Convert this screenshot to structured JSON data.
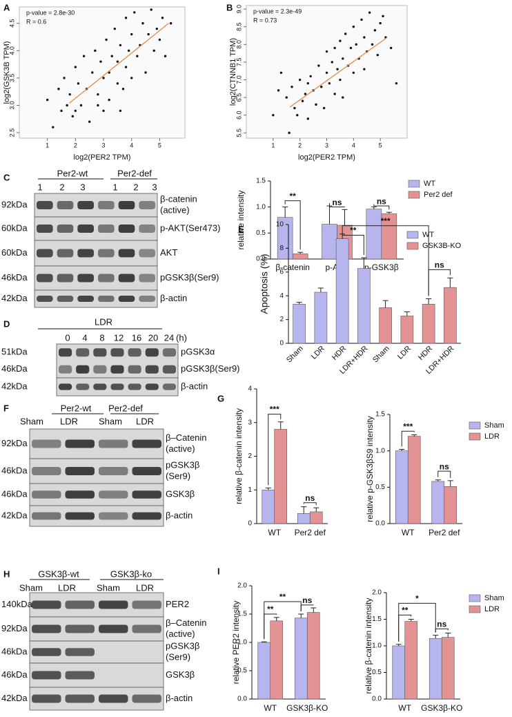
{
  "chart_data": [
    {
      "type": "scatter",
      "panel": "A",
      "xlabel": "log2(PER2 TPM)",
      "ylabel": "log2(GSK3B TPM)",
      "annotations": [
        "p-value = 2.8e-30",
        "R = 0.6"
      ],
      "xlim": [
        0,
        5.9
      ],
      "xticks": [
        1,
        2,
        3,
        4,
        5
      ],
      "ylim": [
        2.4,
        4.8
      ],
      "yticks": [
        2.5,
        {
          "value": 3,
          "label": "3.0"
        },
        3.5,
        {
          "value": 4,
          "label": "4.0"
        },
        4.5
      ],
      "x": [
        1.0,
        1.2,
        1.4,
        1.5,
        1.6,
        1.7,
        1.8,
        1.9,
        2.0,
        2.1,
        2.2,
        2.3,
        2.4,
        2.5,
        2.6,
        2.7,
        2.8,
        2.9,
        3.0,
        3.0,
        3.1,
        3.2,
        3.2,
        3.3,
        3.4,
        3.5,
        3.5,
        3.6,
        3.7,
        3.8,
        3.8,
        3.9,
        4.0,
        4.0,
        4.1,
        4.2,
        4.3,
        4.4,
        4.5,
        4.6,
        4.7,
        4.8,
        4.9,
        5.0,
        5.1,
        5.2,
        5.4,
        2.0,
        2.8,
        3.6
      ],
      "y": [
        3.1,
        2.6,
        3.3,
        2.9,
        3.5,
        3.0,
        3.2,
        2.8,
        3.7,
        3.4,
        3.0,
        3.9,
        3.3,
        2.7,
        3.6,
        4.0,
        3.2,
        3.8,
        3.5,
        2.9,
        4.2,
        3.6,
        3.1,
        3.9,
        4.4,
        3.4,
        3.8,
        4.1,
        3.3,
        4.6,
        3.7,
        4.0,
        4.3,
        3.5,
        4.7,
        3.9,
        4.1,
        4.5,
        3.6,
        4.3,
        4.75,
        4.0,
        4.4,
        4.2,
        4.6,
        3.9,
        4.5,
        2.9,
        3.0,
        2.9
      ],
      "color": "#111111",
      "trend_line": {
        "x": [
          1.78,
          5.32
        ],
        "y": [
          3.04,
          4.5
        ],
        "color": "#e08a4a"
      }
    },
    {
      "type": "scatter",
      "panel": "B",
      "xlabel": "log2(PER2 TPM)",
      "ylabel": "log2(CTNNB1 TPM)",
      "annotations": [
        "p-value = 2.3e-49",
        "R = 0.73"
      ],
      "xlim": [
        0,
        6
      ],
      "xticks": [
        1,
        2,
        3,
        4,
        5
      ],
      "ylim": [
        5.35,
        9.1
      ],
      "yticks": [
        5.5,
        {
          "value": 6,
          "label": "6.0"
        },
        6.5,
        {
          "value": 7,
          "label": "7.0"
        },
        7.5,
        {
          "value": 8,
          "label": "8.0"
        },
        8.5,
        {
          "value": 9,
          "label": "9.0"
        }
      ],
      "x": [
        1.0,
        1.3,
        1.5,
        1.6,
        1.7,
        1.8,
        1.9,
        2.0,
        2.1,
        2.2,
        2.3,
        2.4,
        2.5,
        2.6,
        2.7,
        2.8,
        2.9,
        3.0,
        3.0,
        3.1,
        3.2,
        3.3,
        3.3,
        3.4,
        3.5,
        3.5,
        3.6,
        3.7,
        3.8,
        3.9,
        4.0,
        4.0,
        4.1,
        4.2,
        4.3,
        4.4,
        4.5,
        4.6,
        4.7,
        4.8,
        4.9,
        5.0,
        5.1,
        5.2,
        5.4,
        5.6,
        1.2,
        2.3,
        3.6,
        4.4
      ],
      "y": [
        6.0,
        7.2,
        6.5,
        5.5,
        6.8,
        6.2,
        6.0,
        7.0,
        6.4,
        6.6,
        5.9,
        7.1,
        6.7,
        6.3,
        7.4,
        6.8,
        6.2,
        7.2,
        7.8,
        6.9,
        7.5,
        6.6,
        7.9,
        7.3,
        8.1,
        7.0,
        7.6,
        8.3,
        7.4,
        7.9,
        8.5,
        7.2,
        8.0,
        7.6,
        8.7,
        8.2,
        7.8,
        8.9,
        8.0,
        8.4,
        7.7,
        8.6,
        8.8,
        8.2,
        7.9,
        6.9,
        6.7,
        6.9,
        6.5,
        7.3
      ],
      "color": "#111111",
      "trend_line": {
        "x": [
          1.63,
          5.24
        ],
        "y": [
          6.23,
          8.19
        ],
        "color": "#e08a4a"
      }
    },
    {
      "type": "bar",
      "ylabel": "relative  intensity",
      "categories": [
        "β-catenin",
        "p-AKT",
        "p-GSK3β"
      ],
      "series": [
        {
          "name": "WT",
          "color": "#b7b5ee",
          "values": [
            0.8,
            0.67,
            0.96
          ],
          "errors": [
            0.2,
            0.35,
            0.04
          ]
        },
        {
          "name": "Per2 def",
          "color": "#e39394",
          "values": [
            0.1,
            0.65,
            0.87
          ],
          "errors": [
            0.03,
            0.3,
            0.03
          ]
        }
      ],
      "ylim": [
        0,
        1.5
      ],
      "yticks": [
        {
          "value": 0,
          "label": "0.0"
        },
        0.5,
        {
          "value": 1,
          "label": "1.0"
        },
        1.5
      ],
      "annotations": [
        "**",
        "ns",
        "ns"
      ],
      "legend": "top-right"
    },
    {
      "type": "bar",
      "panel": "E",
      "ylabel": "Apoptosis (%)",
      "rotate_labels": true,
      "categories": [
        "Sham",
        "LDR",
        "HDR",
        "LDR+HDR",
        "Sham",
        "LDR",
        "HDR",
        "LDR+HDR"
      ],
      "series": [
        {
          "name": "WT",
          "color": "#b7b5ee",
          "values": [
            3.3,
            4.3,
            8.8,
            6.3,
            null,
            null,
            null,
            null
          ],
          "errors": [
            0.15,
            0.35,
            0.4,
            0.9,
            null,
            null,
            null,
            null
          ]
        },
        {
          "name": "GSK3B-KO",
          "color": "#e39394",
          "values": [
            null,
            null,
            null,
            null,
            3.0,
            2.3,
            3.3,
            4.7
          ],
          "errors": [
            null,
            null,
            null,
            null,
            0.6,
            0.35,
            0.45,
            0.8
          ]
        }
      ],
      "ylim": [
        0,
        10
      ],
      "yticks": [
        0,
        2,
        4,
        6,
        8,
        10
      ],
      "annotations": [
        "**",
        "***",
        "ns"
      ],
      "legend": "top-right"
    },
    {
      "type": "bar",
      "panel": "G",
      "ylabel": "relative β-catenin intensity",
      "categories": [
        "WT",
        "Per2 def"
      ],
      "series": [
        {
          "name": "Sham",
          "color": "#b7b5ee",
          "values": [
            1.0,
            0.3
          ],
          "errors": [
            0.06,
            0.2
          ]
        },
        {
          "name": "LDR",
          "color": "#e39394",
          "values": [
            2.8,
            0.35
          ],
          "errors": [
            0.22,
            0.12
          ]
        }
      ],
      "ylim": [
        0,
        4
      ],
      "yticks": [
        0,
        1,
        2,
        3,
        4
      ],
      "annotations": [
        "***",
        "ns"
      ]
    },
    {
      "type": "bar",
      "ylabel": "relative p-GSK3βS9 intensity",
      "categories": [
        "WT",
        "Per2 def"
      ],
      "series": [
        {
          "name": "Sham",
          "color": "#b7b5ee",
          "values": [
            1.0,
            0.58
          ],
          "errors": [
            0.02,
            0.02
          ]
        },
        {
          "name": "LDR",
          "color": "#e39394",
          "values": [
            1.2,
            0.51
          ],
          "errors": [
            0.02,
            0.08
          ]
        }
      ],
      "ylim": [
        0,
        1.5
      ],
      "yticks": [
        {
          "value": 0,
          "label": "0.0"
        },
        0.5,
        {
          "value": 1,
          "label": "1.0"
        },
        1.5
      ],
      "annotations": [
        "***",
        "ns"
      ],
      "legend": "top-right"
    },
    {
      "type": "bar",
      "panel": "I",
      "ylabel": "relative PER2 intensity",
      "categories": [
        "WT",
        "GSK3β-KO"
      ],
      "series": [
        {
          "name": "Sham",
          "color": "#b7b5ee",
          "values": [
            1.0,
            1.43
          ],
          "errors": [
            0.01,
            0.07
          ]
        },
        {
          "name": "LDR",
          "color": "#e39394",
          "values": [
            1.38,
            1.53
          ],
          "errors": [
            0.06,
            0.08
          ]
        }
      ],
      "ylim": [
        0,
        2
      ],
      "yticks": [
        {
          "value": 0,
          "label": "0.0"
        },
        0.5,
        {
          "value": 1,
          "label": "1.0"
        },
        1.5,
        {
          "value": 2,
          "label": "2.0"
        }
      ],
      "annotations": [
        "**",
        "**",
        "ns"
      ]
    },
    {
      "type": "bar",
      "ylabel": "relative β-catenin intensity",
      "categories": [
        "WT",
        "GSK3β-KO"
      ],
      "series": [
        {
          "name": "Sham",
          "color": "#b7b5ee",
          "values": [
            1.0,
            1.14
          ],
          "errors": [
            0.03,
            0.06
          ]
        },
        {
          "name": "LDR",
          "color": "#e39394",
          "values": [
            1.46,
            1.16
          ],
          "errors": [
            0.04,
            0.08
          ]
        }
      ],
      "ylim": [
        0,
        2
      ],
      "yticks": [
        {
          "value": 0,
          "label": "0.0"
        },
        0.5,
        {
          "value": 1,
          "label": "1.0"
        },
        1.5,
        {
          "value": 2,
          "label": "2.0"
        }
      ],
      "annotations": [
        "**",
        "*",
        "ns"
      ],
      "legend": "top-right"
    }
  ],
  "blots": [
    {
      "panel": "C",
      "groups": [
        "Per2-wt",
        "Per2-def"
      ],
      "lanes": [
        "1",
        "2",
        "3",
        "1",
        "2",
        "3"
      ],
      "rows": [
        {
          "kda": [
            "92kDa"
          ],
          "label": [
            "β-catenin",
            "(active)"
          ]
        },
        {
          "kda": [
            "60kDa"
          ],
          "label": [
            "p-AKT(Ser473)"
          ]
        },
        {
          "kda": [
            "60kDa"
          ],
          "label": [
            "AKT"
          ]
        },
        {
          "kda": [
            "46kDa"
          ],
          "label": [
            "pGSK3β(Ser9)"
          ]
        },
        {
          "kda": [
            "42kDa"
          ],
          "label": [
            "β-actin"
          ]
        }
      ]
    },
    {
      "panel": "D",
      "groups": [
        "LDR"
      ],
      "lanes": [
        "0",
        "4",
        "8",
        "12",
        "16",
        "20",
        "24"
      ],
      "unit": "(h)",
      "rows": [
        {
          "kda": [
            "51kDa",
            "46kDa"
          ],
          "label": [
            "pGSK3α",
            "pGSK3β(Ser9)"
          ]
        },
        {
          "kda": [
            "42kDa"
          ],
          "label": [
            "β-actin"
          ]
        }
      ]
    },
    {
      "panel": "F",
      "groups": [
        "Per2-wt",
        "Per2-def"
      ],
      "lanes": [
        "Sham",
        "LDR",
        "Sham",
        "LDR"
      ],
      "rows": [
        {
          "kda": [
            "92kDa"
          ],
          "label": [
            "β–Catenin",
            "(active)"
          ]
        },
        {
          "kda": [
            "46kDa"
          ],
          "label": [
            "pGSK3β",
            "(Ser9)"
          ]
        },
        {
          "kda": [
            "46kDa"
          ],
          "label": [
            "GSK3β"
          ]
        },
        {
          "kda": [
            "42kDa"
          ],
          "label": [
            "β-actin"
          ]
        }
      ]
    },
    {
      "panel": "H",
      "groups": [
        "GSK3β-wt",
        "GSK3β-ko"
      ],
      "lanes": [
        "Sham",
        "LDR",
        "Sham",
        "LDR"
      ],
      "rows": [
        {
          "kda": [
            "140kDa"
          ],
          "label": [
            "PER2"
          ]
        },
        {
          "kda": [
            "92kDa"
          ],
          "label": [
            "β–Catenin",
            "(active)"
          ]
        },
        {
          "kda": [
            "46kDa"
          ],
          "label": [
            "pGSK3β",
            "(Ser9)"
          ]
        },
        {
          "kda": [
            "46kDa"
          ],
          "label": [
            "GSK3β"
          ]
        },
        {
          "kda": [
            "42kDa"
          ],
          "label": [
            "β-actin"
          ]
        }
      ]
    }
  ]
}
